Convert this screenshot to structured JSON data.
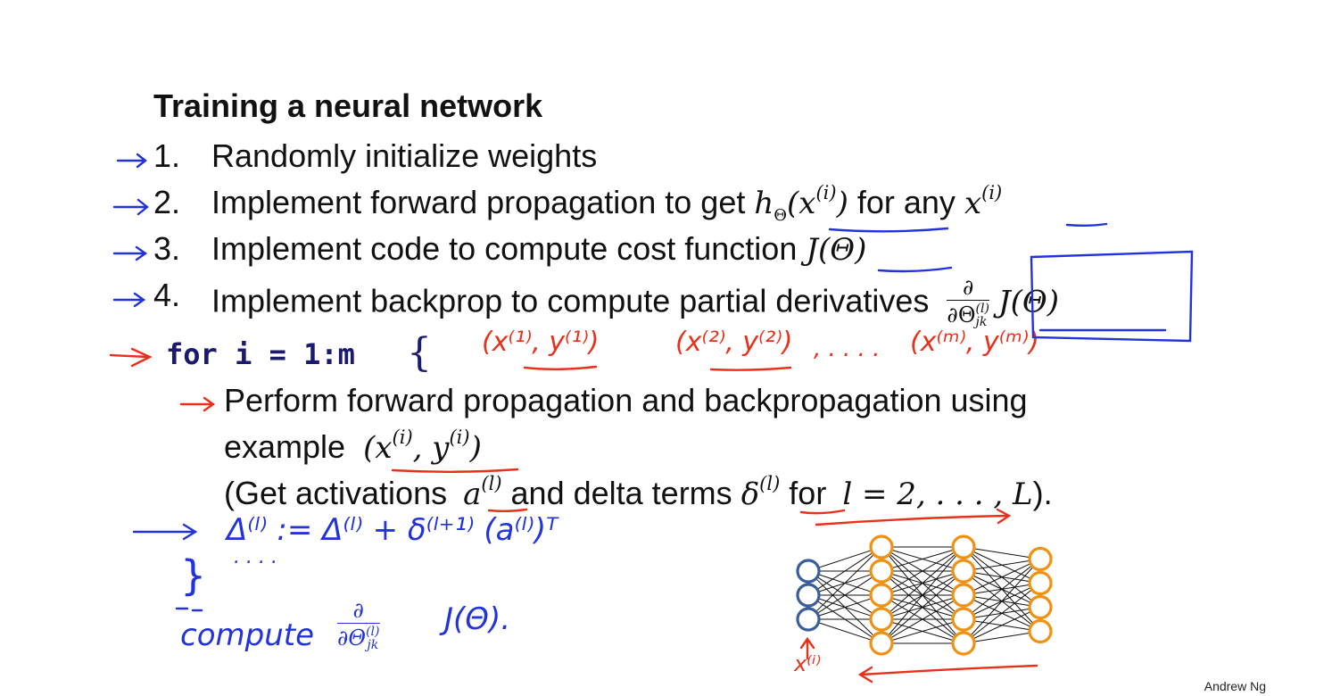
{
  "slide": {
    "title": "Training a neural network",
    "steps": [
      {
        "num": "1.",
        "text": "Randomly initialize weights"
      },
      {
        "num": "2.",
        "text": "Implement forward propagation to get",
        "math1_base": "h",
        "math1_sub": "Θ",
        "math1_arg": "(x",
        "math1_sup": "(i)",
        "math1_close": ")",
        "mid": "for any",
        "math2_base": "x",
        "math2_sup": "(i)"
      },
      {
        "num": "3.",
        "text": "Implement code to compute cost function",
        "math": "J(Θ)"
      },
      {
        "num": "4.",
        "text": "Implement backprop to compute partial derivatives",
        "frac_top": "∂",
        "frac_bottom": "∂Θ",
        "frac_sup": "(l)",
        "frac_sub": "jk",
        "after_frac": "J(Θ)"
      }
    ],
    "loop": {
      "code": "for i = 1:m",
      "brace": "{",
      "line1": "Perform forward propagation and backpropagation using",
      "line2_text": "example",
      "line2_math": "(x",
      "line2_sup1": "(i)",
      "line2_mid": ", y",
      "line2_sup2": "(i)",
      "line2_close": ")",
      "line3_open": "(Get activations",
      "line3_a": "a",
      "line3_a_sup": "(l)",
      "line3_mid": "and delta terms",
      "line3_delta": "δ",
      "line3_delta_sup": "(l)",
      "line3_for": "for",
      "line3_range": "l = 2, . . . , L",
      "line3_end": ")."
    },
    "footer": "Andrew Ng"
  },
  "handwriting": {
    "pairs": [
      "(x⁽¹⁾, y⁽¹⁾)",
      "(x⁽²⁾, y⁽²⁾)",
      ", . . . .",
      "(x⁽ᵐ⁾, y⁽ᵐ⁾)"
    ],
    "update": "Δ⁽ˡ⁾ := Δ⁽ˡ⁾ + δ⁽ˡ⁺¹⁾ (a⁽ˡ⁾)ᵀ",
    "dots": ". . . .",
    "close_brace": "}",
    "compute_word": "compute",
    "compute_frac_top": "∂",
    "compute_frac_bottom": "∂Θ",
    "compute_frac_sup": "(l)",
    "compute_frac_sub": "jk",
    "compute_tail": "J(Θ).",
    "x_label": "x⁽ⁱ⁾"
  },
  "network": {
    "layers": [
      3,
      5,
      5,
      4
    ],
    "colors": {
      "input": "#3a5d9c",
      "hidden": "#f29111",
      "output": "#f29111",
      "edges": "#111111"
    }
  },
  "colors": {
    "red_ink": "#e8301a",
    "blue_ink": "#2233dd",
    "code": "#1a1a6e"
  }
}
